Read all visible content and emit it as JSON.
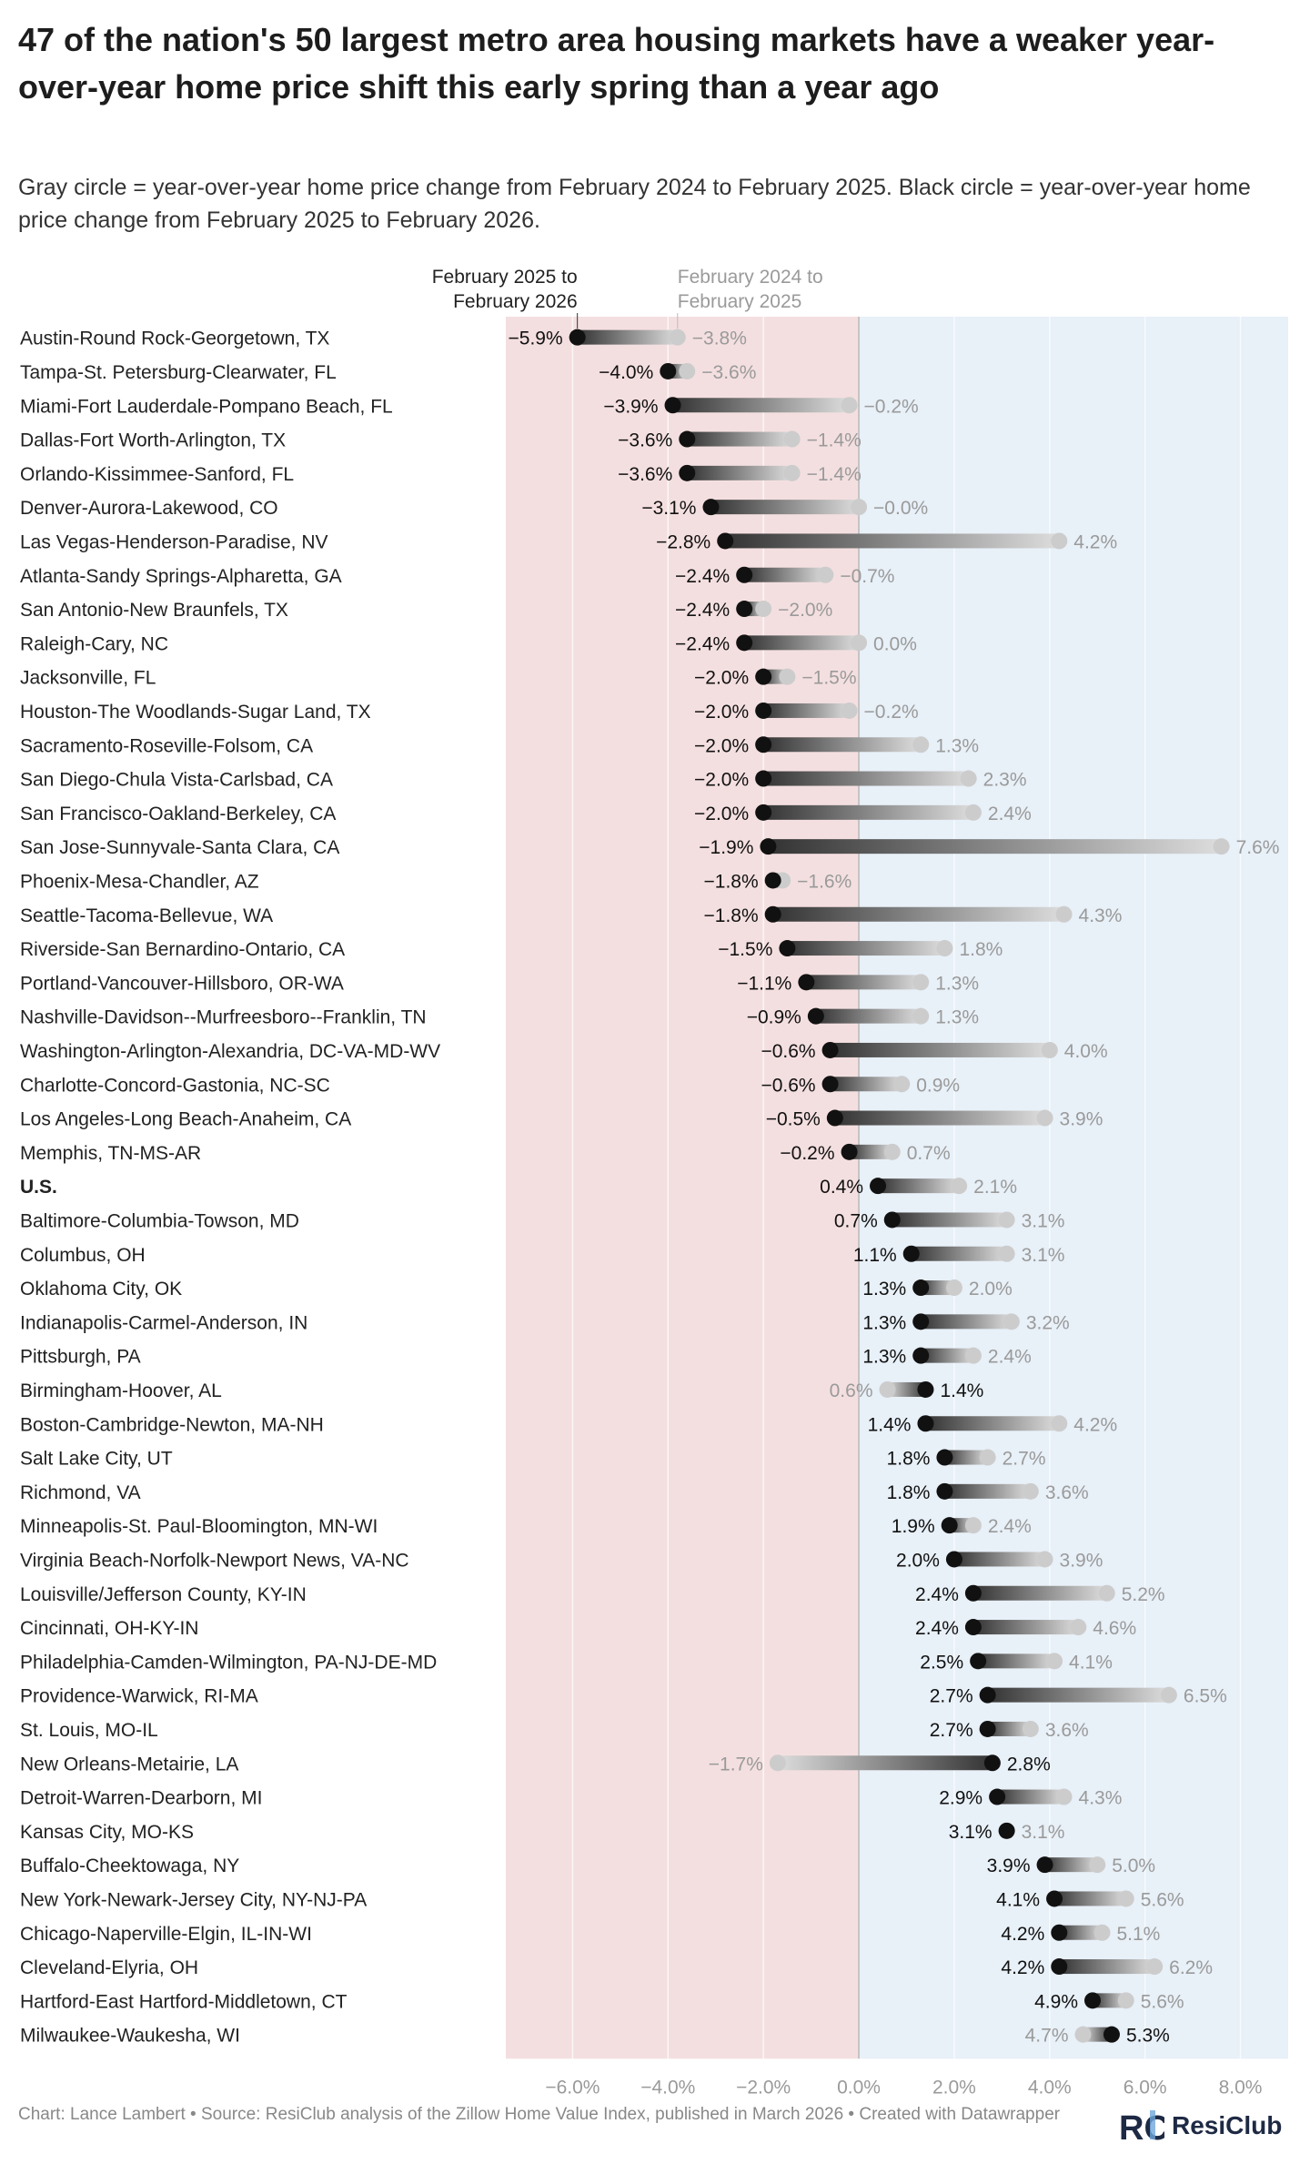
{
  "title": "47 of the nation's 50 largest metro area housing markets have a weaker year-over-year home price shift this early spring than a year ago",
  "subtitle": "Gray circle = year-over-year home price change from February 2024 to February 2025. Black circle = year-over-year home price change from February 2025 to February 2026.",
  "footer": "Chart: Lance Lambert • Source: ResiClub analysis of the Zillow Home Value Index, published in March 2026 • Created with Datawrapper",
  "logo": {
    "text": "ResiClub",
    "mark_letters": "RC",
    "color": "#1e2a44",
    "accent": "#6fa8dc"
  },
  "colors": {
    "negative_zone": "#f4dfe0",
    "positive_zone": "#e8f0f8",
    "current_dot": "#111111",
    "prior_dot": "#cccccc",
    "prior_label": "#9a9a9a",
    "axis_label": "#9a9a9a"
  },
  "chart_data": {
    "type": "dot-range",
    "title": "47 of the nation's 50 largest metro area housing markets have a weaker year-over-year home price shift this early spring than a year ago",
    "legend": {
      "current": "February 2025 to February 2026",
      "prior": "February 2024 to February 2025"
    },
    "xlim": [
      -7.4,
      9.0
    ],
    "xticks": [
      -6,
      -4,
      -2,
      0,
      2,
      4,
      6,
      8
    ],
    "xtick_labels": [
      "−6.0%",
      "−4.0%",
      "−2.0%",
      "0.0%",
      "2.0%",
      "4.0%",
      "6.0%",
      "8.0%"
    ],
    "series": [
      {
        "name": "February 2024 to February 2025",
        "key": "prior"
      },
      {
        "name": "February 2025 to February 2026",
        "key": "current"
      }
    ],
    "rows": [
      {
        "metro": "Austin-Round Rock-Georgetown, TX",
        "current": -5.9,
        "prior": -3.8,
        "current_label": "−5.9%",
        "prior_label": "−3.8%"
      },
      {
        "metro": "Tampa-St. Petersburg-Clearwater, FL",
        "current": -4.0,
        "prior": -3.6,
        "current_label": "−4.0%",
        "prior_label": "−3.6%"
      },
      {
        "metro": "Miami-Fort Lauderdale-Pompano Beach, FL",
        "current": -3.9,
        "prior": -0.2,
        "current_label": "−3.9%",
        "prior_label": "−0.2%"
      },
      {
        "metro": "Dallas-Fort Worth-Arlington, TX",
        "current": -3.6,
        "prior": -1.4,
        "current_label": "−3.6%",
        "prior_label": "−1.4%"
      },
      {
        "metro": "Orlando-Kissimmee-Sanford, FL",
        "current": -3.6,
        "prior": -1.4,
        "current_label": "−3.6%",
        "prior_label": "−1.4%"
      },
      {
        "metro": "Denver-Aurora-Lakewood, CO",
        "current": -3.1,
        "prior": -0.0,
        "current_label": "−3.1%",
        "prior_label": "−0.0%"
      },
      {
        "metro": "Las Vegas-Henderson-Paradise, NV",
        "current": -2.8,
        "prior": 4.2,
        "current_label": "−2.8%",
        "prior_label": "4.2%"
      },
      {
        "metro": "Atlanta-Sandy Springs-Alpharetta, GA",
        "current": -2.4,
        "prior": -0.7,
        "current_label": "−2.4%",
        "prior_label": "−0.7%"
      },
      {
        "metro": "San Antonio-New Braunfels, TX",
        "current": -2.4,
        "prior": -2.0,
        "current_label": "−2.4%",
        "prior_label": "−2.0%"
      },
      {
        "metro": "Raleigh-Cary, NC",
        "current": -2.4,
        "prior": 0.0,
        "current_label": "−2.4%",
        "prior_label": "0.0%"
      },
      {
        "metro": "Jacksonville, FL",
        "current": -2.0,
        "prior": -1.5,
        "current_label": "−2.0%",
        "prior_label": "−1.5%"
      },
      {
        "metro": "Houston-The Woodlands-Sugar Land, TX",
        "current": -2.0,
        "prior": -0.2,
        "current_label": "−2.0%",
        "prior_label": "−0.2%"
      },
      {
        "metro": "Sacramento-Roseville-Folsom, CA",
        "current": -2.0,
        "prior": 1.3,
        "current_label": "−2.0%",
        "prior_label": "1.3%"
      },
      {
        "metro": "San Diego-Chula Vista-Carlsbad, CA",
        "current": -2.0,
        "prior": 2.3,
        "current_label": "−2.0%",
        "prior_label": "2.3%"
      },
      {
        "metro": "San Francisco-Oakland-Berkeley, CA",
        "current": -2.0,
        "prior": 2.4,
        "current_label": "−2.0%",
        "prior_label": "2.4%"
      },
      {
        "metro": "San Jose-Sunnyvale-Santa Clara, CA",
        "current": -1.9,
        "prior": 7.6,
        "current_label": "−1.9%",
        "prior_label": "7.6%"
      },
      {
        "metro": "Phoenix-Mesa-Chandler, AZ",
        "current": -1.8,
        "prior": -1.6,
        "current_label": "−1.8%",
        "prior_label": "−1.6%"
      },
      {
        "metro": "Seattle-Tacoma-Bellevue, WA",
        "current": -1.8,
        "prior": 4.3,
        "current_label": "−1.8%",
        "prior_label": "4.3%"
      },
      {
        "metro": "Riverside-San Bernardino-Ontario, CA",
        "current": -1.5,
        "prior": 1.8,
        "current_label": "−1.5%",
        "prior_label": "1.8%"
      },
      {
        "metro": "Portland-Vancouver-Hillsboro, OR-WA",
        "current": -1.1,
        "prior": 1.3,
        "current_label": "−1.1%",
        "prior_label": "1.3%"
      },
      {
        "metro": "Nashville-Davidson--Murfreesboro--Franklin, TN",
        "current": -0.9,
        "prior": 1.3,
        "current_label": "−0.9%",
        "prior_label": "1.3%"
      },
      {
        "metro": "Washington-Arlington-Alexandria, DC-VA-MD-WV",
        "current": -0.6,
        "prior": 4.0,
        "current_label": "−0.6%",
        "prior_label": "4.0%"
      },
      {
        "metro": "Charlotte-Concord-Gastonia, NC-SC",
        "current": -0.6,
        "prior": 0.9,
        "current_label": "−0.6%",
        "prior_label": "0.9%"
      },
      {
        "metro": "Los Angeles-Long Beach-Anaheim, CA",
        "current": -0.5,
        "prior": 3.9,
        "current_label": "−0.5%",
        "prior_label": "3.9%"
      },
      {
        "metro": "Memphis, TN-MS-AR",
        "current": -0.2,
        "prior": 0.7,
        "current_label": "−0.2%",
        "prior_label": "0.7%"
      },
      {
        "metro": "U.S.",
        "current": 0.4,
        "prior": 2.1,
        "current_label": "0.4%",
        "prior_label": "2.1%",
        "bold": true
      },
      {
        "metro": "Baltimore-Columbia-Towson, MD",
        "current": 0.7,
        "prior": 3.1,
        "current_label": "0.7%",
        "prior_label": "3.1%"
      },
      {
        "metro": "Columbus, OH",
        "current": 1.1,
        "prior": 3.1,
        "current_label": "1.1%",
        "prior_label": "3.1%"
      },
      {
        "metro": "Oklahoma City, OK",
        "current": 1.3,
        "prior": 2.0,
        "current_label": "1.3%",
        "prior_label": "2.0%"
      },
      {
        "metro": "Indianapolis-Carmel-Anderson, IN",
        "current": 1.3,
        "prior": 3.2,
        "current_label": "1.3%",
        "prior_label": "3.2%"
      },
      {
        "metro": "Pittsburgh, PA",
        "current": 1.3,
        "prior": 2.4,
        "current_label": "1.3%",
        "prior_label": "2.4%"
      },
      {
        "metro": "Birmingham-Hoover, AL",
        "current": 1.4,
        "prior": 0.6,
        "current_label": "1.4%",
        "prior_label": "0.6%"
      },
      {
        "metro": "Boston-Cambridge-Newton, MA-NH",
        "current": 1.4,
        "prior": 4.2,
        "current_label": "1.4%",
        "prior_label": "4.2%"
      },
      {
        "metro": "Salt Lake City, UT",
        "current": 1.8,
        "prior": 2.7,
        "current_label": "1.8%",
        "prior_label": "2.7%"
      },
      {
        "metro": "Richmond, VA",
        "current": 1.8,
        "prior": 3.6,
        "current_label": "1.8%",
        "prior_label": "3.6%"
      },
      {
        "metro": "Minneapolis-St. Paul-Bloomington, MN-WI",
        "current": 1.9,
        "prior": 2.4,
        "current_label": "1.9%",
        "prior_label": "2.4%"
      },
      {
        "metro": "Virginia Beach-Norfolk-Newport News, VA-NC",
        "current": 2.0,
        "prior": 3.9,
        "current_label": "2.0%",
        "prior_label": "3.9%"
      },
      {
        "metro": "Louisville/Jefferson County, KY-IN",
        "current": 2.4,
        "prior": 5.2,
        "current_label": "2.4%",
        "prior_label": "5.2%"
      },
      {
        "metro": "Cincinnati, OH-KY-IN",
        "current": 2.4,
        "prior": 4.6,
        "current_label": "2.4%",
        "prior_label": "4.6%"
      },
      {
        "metro": "Philadelphia-Camden-Wilmington, PA-NJ-DE-MD",
        "current": 2.5,
        "prior": 4.1,
        "current_label": "2.5%",
        "prior_label": "4.1%"
      },
      {
        "metro": "Providence-Warwick, RI-MA",
        "current": 2.7,
        "prior": 6.5,
        "current_label": "2.7%",
        "prior_label": "6.5%"
      },
      {
        "metro": "St. Louis, MO-IL",
        "current": 2.7,
        "prior": 3.6,
        "current_label": "2.7%",
        "prior_label": "3.6%"
      },
      {
        "metro": "New Orleans-Metairie, LA",
        "current": 2.8,
        "prior": -1.7,
        "current_label": "2.8%",
        "prior_label": "−1.7%"
      },
      {
        "metro": "Detroit-Warren-Dearborn, MI",
        "current": 2.9,
        "prior": 4.3,
        "current_label": "2.9%",
        "prior_label": "4.3%"
      },
      {
        "metro": "Kansas City, MO-KS",
        "current": 3.1,
        "prior": 3.1,
        "current_label": "3.1%",
        "prior_label": "3.1%"
      },
      {
        "metro": "Buffalo-Cheektowaga, NY",
        "current": 3.9,
        "prior": 5.0,
        "current_label": "3.9%",
        "prior_label": "5.0%"
      },
      {
        "metro": "New York-Newark-Jersey City, NY-NJ-PA",
        "current": 4.1,
        "prior": 5.6,
        "current_label": "4.1%",
        "prior_label": "5.6%"
      },
      {
        "metro": "Chicago-Naperville-Elgin, IL-IN-WI",
        "current": 4.2,
        "prior": 5.1,
        "current_label": "4.2%",
        "prior_label": "5.1%"
      },
      {
        "metro": "Cleveland-Elyria, OH",
        "current": 4.2,
        "prior": 6.2,
        "current_label": "4.2%",
        "prior_label": "6.2%"
      },
      {
        "metro": "Hartford-East Hartford-Middletown, CT",
        "current": 4.9,
        "prior": 5.6,
        "current_label": "4.9%",
        "prior_label": "5.6%"
      },
      {
        "metro": "Milwaukee-Waukesha, WI",
        "current": 5.3,
        "prior": 4.7,
        "current_label": "5.3%",
        "prior_label": "4.7%"
      }
    ]
  }
}
